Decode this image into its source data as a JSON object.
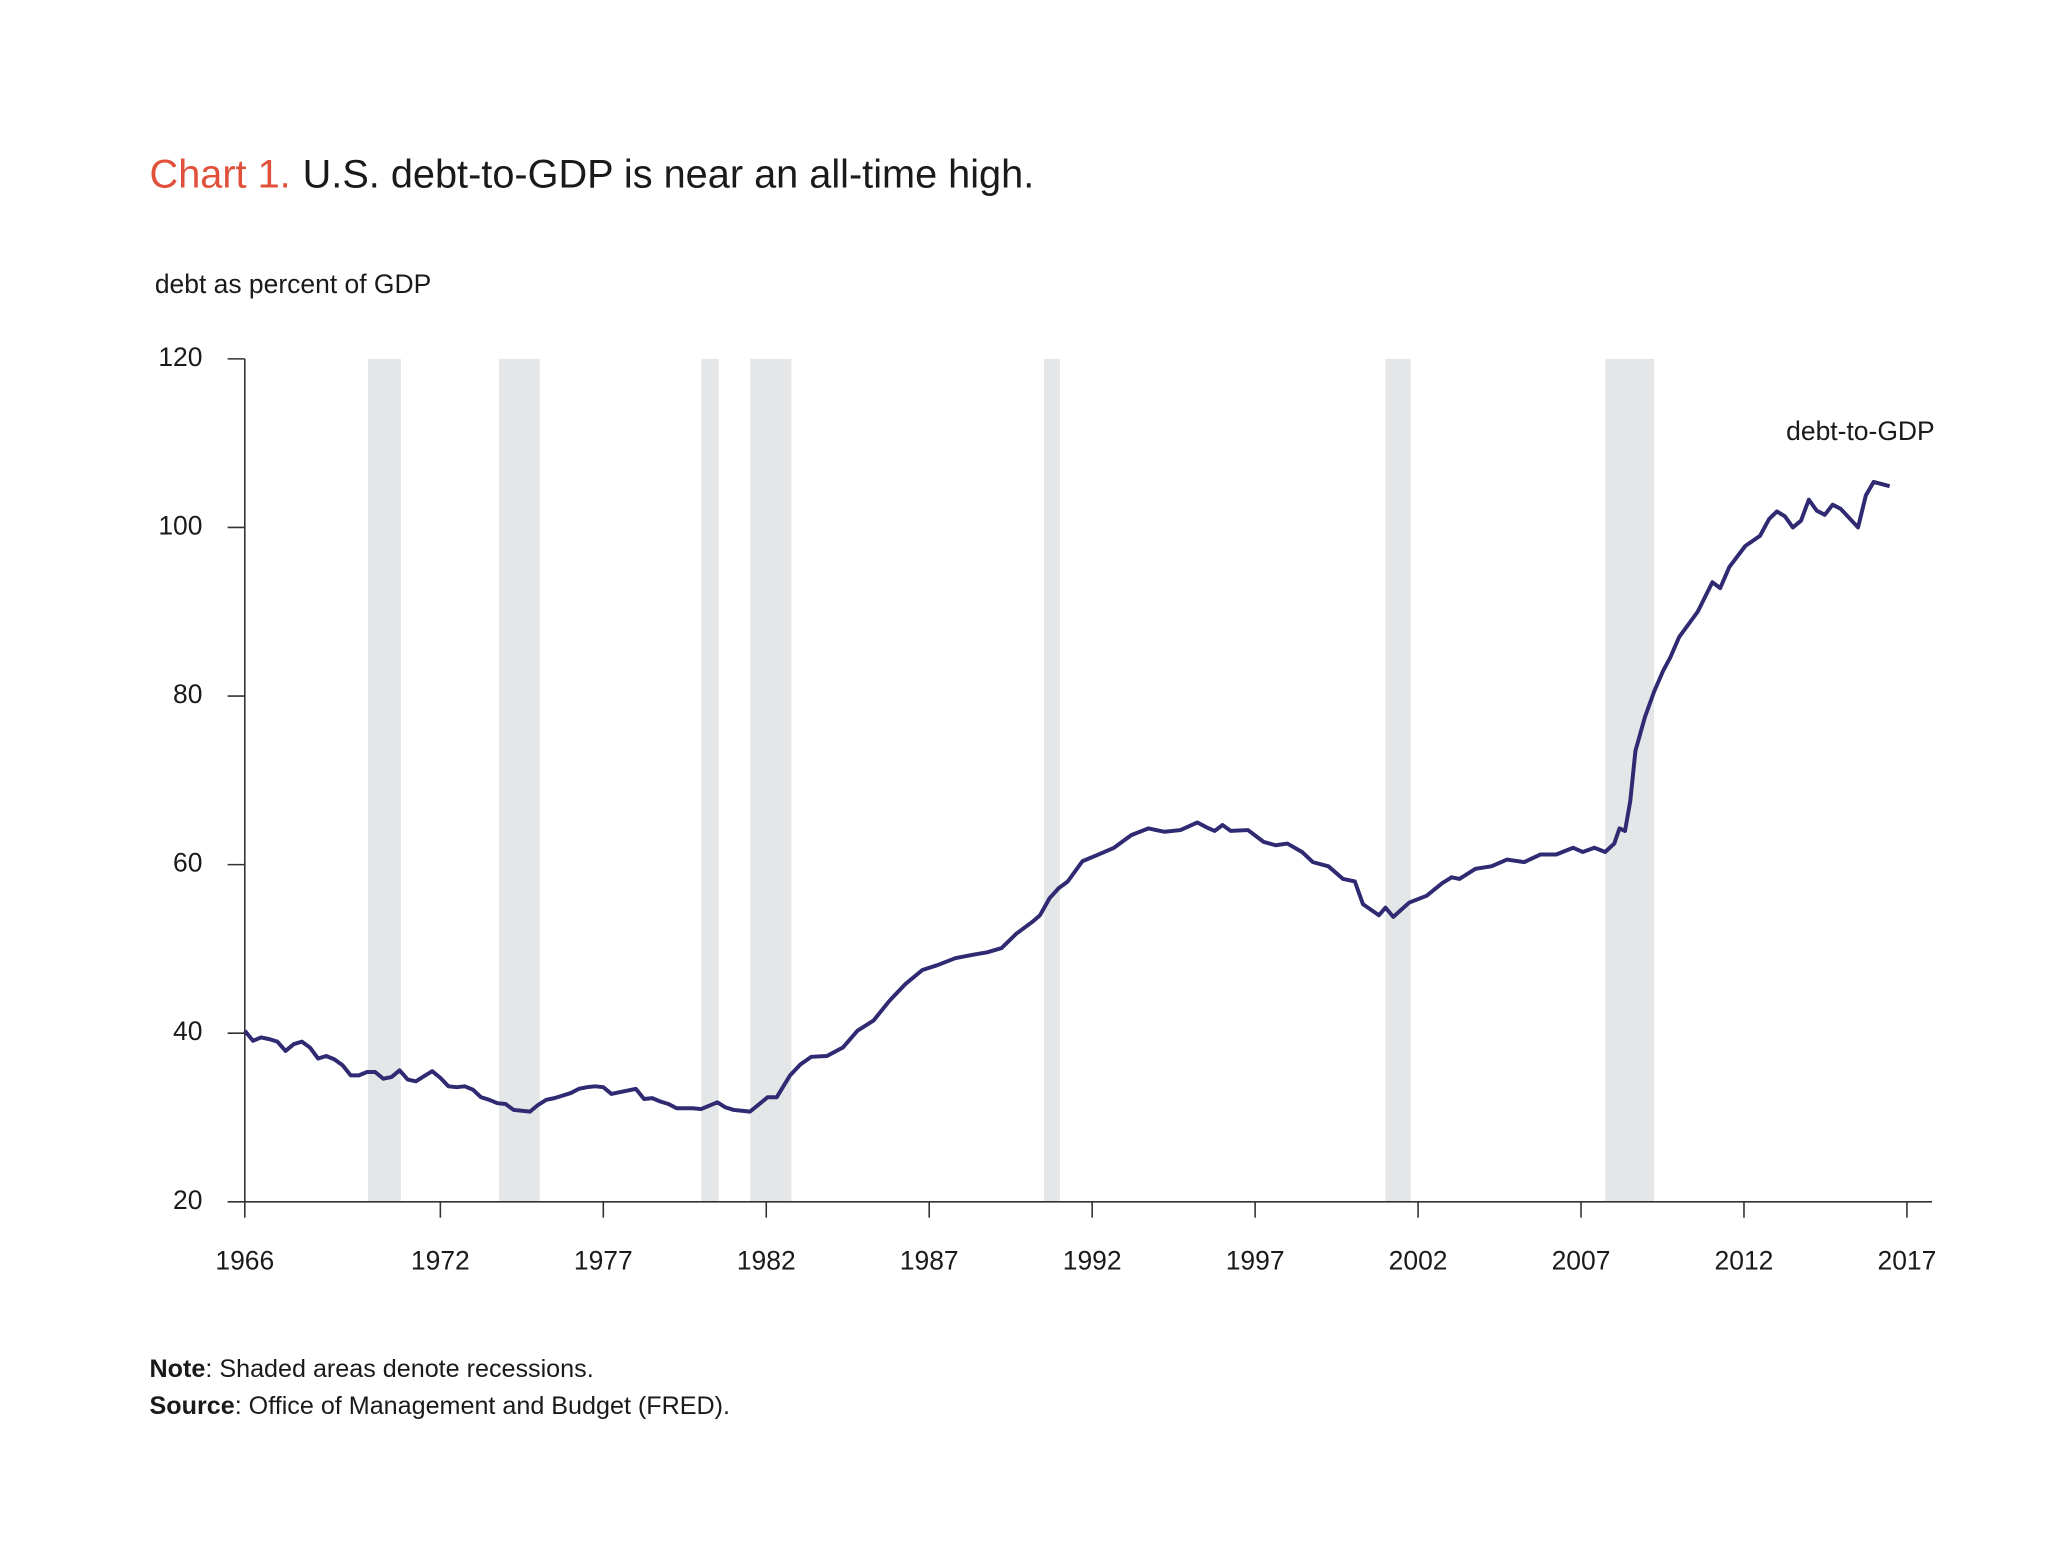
{
  "chart_data": {
    "type": "line",
    "chart_label": "Chart 1.",
    "title": "U.S. debt-to-GDP is near an all-time high.",
    "y_axis_label": "debt as percent of GDP",
    "x": [
      1966,
      1966.25,
      1966.5,
      1966.75,
      1967,
      1967.25,
      1967.5,
      1967.75,
      1968,
      1968.25,
      1968.5,
      1968.75,
      1969,
      1969.25,
      1969.5,
      1969.75,
      1970,
      1970.25,
      1970.5,
      1970.75,
      1971,
      1971.25,
      1971.5,
      1971.75,
      1972,
      1972.25,
      1972.5,
      1972.75,
      1973,
      1973.25,
      1973.5,
      1973.75,
      1974,
      1974.25,
      1974.5,
      1974.75,
      1975,
      1975.25,
      1975.5,
      1975.75,
      1976,
      1976.25,
      1976.5,
      1976.75,
      1977,
      1977.25,
      1977.5,
      1977.75,
      1978,
      1978.25,
      1978.5,
      1978.75,
      1979,
      1979.25,
      1979.5,
      1979.75,
      1980,
      1980.25,
      1980.5,
      1980.75,
      1981,
      1981.25,
      1981.5,
      1982.04,
      1982.32,
      1982.73,
      1983.05,
      1983.38,
      1983.86,
      1984.35,
      1984.8,
      1985.29,
      1985.77,
      1986.26,
      1986.79,
      1987.27,
      1987.8,
      1988.33,
      1988.78,
      1989.22,
      1989.67,
      1990.16,
      1990.4,
      1990.69,
      1990.97,
      1991.25,
      1991.7,
      1992.19,
      1992.67,
      1993.2,
      1993.73,
      1994.22,
      1994.71,
      1995.23,
      1995.52,
      1995.76,
      1996,
      1996.25,
      1996.78,
      1997.26,
      1997.63,
      1997.99,
      1998.44,
      1998.77,
      1999.25,
      1999.7,
      2000.06,
      2000.31,
      2000.8,
      2001,
      2001.24,
      2001.73,
      2002.26,
      2002.74,
      2003.03,
      2003.27,
      2003.76,
      2004.25,
      2004.73,
      2005.26,
      2005.75,
      2006.24,
      2006.76,
      2007.05,
      2007.41,
      2007.74,
      2008.02,
      2008.18,
      2008.35,
      2008.51,
      2008.67,
      2008.96,
      2009.24,
      2009.52,
      2009.73,
      2010.01,
      2010.58,
      2011.03,
      2011.27,
      2011.55,
      2012.04,
      2012.49,
      2012.77,
      2013.01,
      2013.26,
      2013.5,
      2013.75,
      2013.99,
      2014.23,
      2014.48,
      2014.72,
      2014.97,
      2015.5,
      2015.74,
      2015.98,
      2016.47
    ],
    "series": [
      {
        "name": "debt-to-GDP",
        "color": "#2f2a72",
        "values": [
          40.3,
          39.1,
          39.5,
          39.3,
          39,
          37.9,
          38.7,
          39,
          38.3,
          37,
          37.3,
          36.9,
          36.2,
          35,
          35,
          35.4,
          35.4,
          34.6,
          34.8,
          35.6,
          34.5,
          34.3,
          34.9,
          35.5,
          34.7,
          33.7,
          33.6,
          33.7,
          33.3,
          32.4,
          32.1,
          31.7,
          31.6,
          30.9,
          30.8,
          30.7,
          31.5,
          32.1,
          32.3,
          32.6,
          32.9,
          33.4,
          33.6,
          33.7,
          33.6,
          32.8,
          33,
          33.2,
          33.4,
          32.2,
          32.3,
          31.9,
          31.6,
          31.1,
          31.1,
          31.1,
          31,
          31.4,
          31.8,
          31.2,
          30.9,
          30.8,
          30.7,
          32.4,
          32.4,
          35,
          36.3,
          37.2,
          37.3,
          38.3,
          40.3,
          41.5,
          43.8,
          45.8,
          47.5,
          48.1,
          48.9,
          49.3,
          49.6,
          50.1,
          51.8,
          53.2,
          54,
          56,
          57.2,
          58,
          60.4,
          61.2,
          62,
          63.5,
          64.3,
          63.9,
          64.1,
          65,
          64.4,
          64,
          64.7,
          64,
          64.1,
          62.7,
          62.3,
          62.5,
          61.5,
          60.3,
          59.8,
          58.3,
          58,
          55.3,
          54,
          54.9,
          53.8,
          55.5,
          56.3,
          57.8,
          58.5,
          58.3,
          59.5,
          59.8,
          60.6,
          60.3,
          61.2,
          61.2,
          62,
          61.5,
          62,
          61.5,
          62.5,
          64.3,
          64,
          67.5,
          73.5,
          77.5,
          80.5,
          83,
          84.5,
          87,
          90,
          93.5,
          92.8,
          95.3,
          97.8,
          99,
          101,
          101.9,
          101.3,
          100,
          100.8,
          103.3,
          102,
          101.5,
          102.7,
          102.2,
          100,
          103.8,
          105.4,
          104.9
        ]
      }
    ],
    "recessions": [
      [
        1969.78,
        1970.79
      ],
      [
        1973.8,
        1975.05
      ],
      [
        1980.01,
        1980.54
      ],
      [
        1981.51,
        1982.77
      ],
      [
        1990.52,
        1991.01
      ],
      [
        2001.0,
        2001.77
      ],
      [
        2007.74,
        2009.24
      ]
    ],
    "recession_color": "#e5e6e8",
    "xlim": [
      1966,
      2017.77
    ],
    "xticks": [
      1966,
      1972,
      1977,
      1982,
      1987,
      1992,
      1997,
      2002,
      2007,
      2012,
      2017
    ],
    "ylim": [
      20,
      120
    ],
    "yticks": [
      20,
      40,
      60,
      80,
      100,
      120
    ],
    "grid": false,
    "notes": [
      {
        "label": "Note",
        "text": ": Shaded areas denote recessions."
      },
      {
        "label": "Source",
        "text": ": Office of Management and Budget (FRED)."
      }
    ]
  }
}
